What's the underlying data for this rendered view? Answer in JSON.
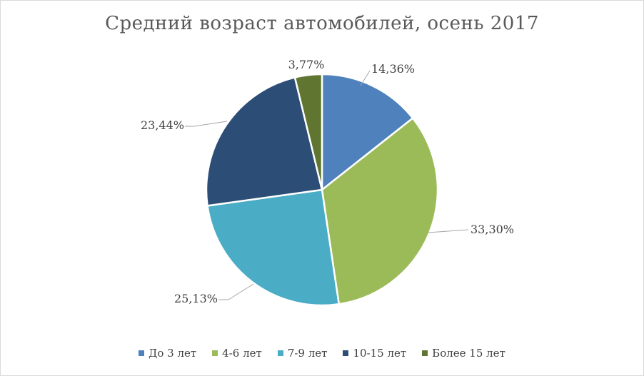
{
  "chart_data": {
    "type": "pie",
    "title": "Средний возраст автомобилей, осень 2017",
    "legend_position": "bottom",
    "categories": [
      "До 3 лет",
      "4-6 лет",
      "7-9 лет",
      "10-15 лет",
      "Более 15 лет"
    ],
    "values": [
      14.36,
      33.3,
      25.13,
      23.44,
      3.77
    ],
    "labels": [
      "14,36%",
      "33,30%",
      "25,13%",
      "23,44%",
      "3,77%"
    ],
    "colors": [
      "#4f81bd",
      "#9bbb59",
      "#4bacc6",
      "#2c4d75",
      "#5f7530"
    ]
  }
}
